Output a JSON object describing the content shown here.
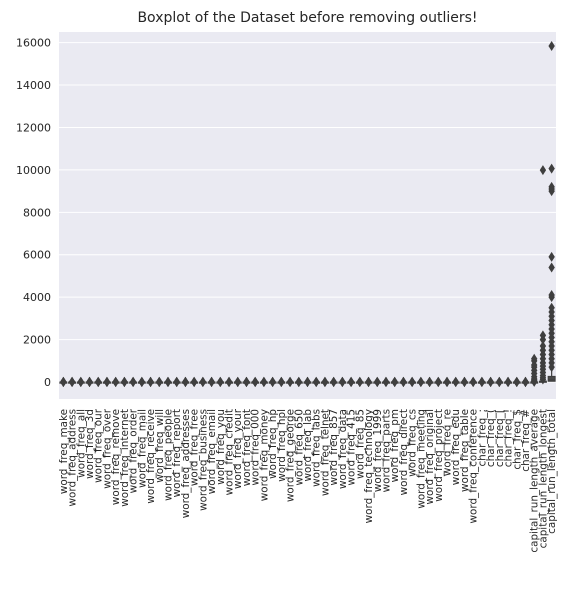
{
  "chart_data": {
    "type": "boxplot",
    "title": "Boxplot of the Dataset before removing outliers!",
    "xlabel": "",
    "ylabel": "",
    "ylim": [
      -800,
      16500
    ],
    "y_ticks": [
      0,
      2000,
      4000,
      6000,
      8000,
      10000,
      12000,
      14000,
      16000
    ],
    "grid": true,
    "legend": "none",
    "colors": {
      "background": "#eaeaf2",
      "grid": "#ffffff",
      "box": "#3f3f3f",
      "text": "#262626"
    },
    "categories": [
      "word_freq_make",
      "word_freq_address",
      "word_freq_all",
      "word_freq_3d",
      "word_freq_our",
      "word_freq_over",
      "word_freq_remove",
      "word_freq_internet",
      "word_freq_order",
      "word_freq_mail",
      "word_freq_receive",
      "word_freq_will",
      "word_freq_people",
      "word_freq_report",
      "word_freq_addresses",
      "word_freq_free",
      "word_freq_business",
      "word_freq_email",
      "word_freq_you",
      "word_freq_credit",
      "word_freq_your",
      "word_freq_font",
      "word_freq_000",
      "word_freq_money",
      "word_freq_hp",
      "word_freq_hpl",
      "word_freq_george",
      "word_freq_650",
      "word_freq_lab",
      "word_freq_labs",
      "word_freq_telnet",
      "word_freq_857",
      "word_freq_data",
      "word_freq_415",
      "word_freq_85",
      "word_freq_technology",
      "word_freq_1999",
      "word_freq_parts",
      "word_freq_pm",
      "word_freq_direct",
      "word_freq_cs",
      "word_freq_meeting",
      "word_freq_original",
      "word_freq_project",
      "word_freq_re",
      "word_freq_edu",
      "word_freq_table",
      "word_freq_conference",
      "char_freq_;",
      "char_freq_(",
      "char_freq_[",
      "char_freq_!",
      "char_freq_$",
      "char_freq_#",
      "capital_run_length_average",
      "capital_run_length_longest",
      "capital_run_length_total"
    ],
    "boxes": [
      {
        "category": "capital_run_length_average",
        "q1": 1.6,
        "median": 2.3,
        "q3": 3.7,
        "whisker_high": 7,
        "outliers": [
          10,
          30,
          60,
          100,
          150,
          250,
          400,
          550,
          700,
          800,
          1000,
          1100
        ]
      },
      {
        "category": "capital_run_length_longest",
        "q1": 6,
        "median": 15,
        "q3": 43,
        "whisker_high": 98,
        "outliers": [
          120,
          200,
          300,
          450,
          600,
          750,
          900,
          1100,
          1300,
          1500,
          1700,
          2000,
          2200,
          9989
        ]
      },
      {
        "category": "capital_run_length_total",
        "q1": 35,
        "median": 95,
        "q3": 266,
        "whisker_high": 600,
        "outliers": [
          700,
          900,
          1100,
          1300,
          1500,
          1700,
          1900,
          2100,
          2300,
          2500,
          2700,
          2900,
          3100,
          3300,
          3500,
          4000,
          4100,
          5400,
          5900,
          9000,
          9100,
          9200,
          10062,
          15841
        ]
      }
    ],
    "default_box": {
      "q1": 0,
      "median": 0,
      "q3": 0,
      "whisker_high": 0,
      "outliers": [
        0.5,
        1,
        3,
        5,
        8,
        12
      ]
    }
  }
}
